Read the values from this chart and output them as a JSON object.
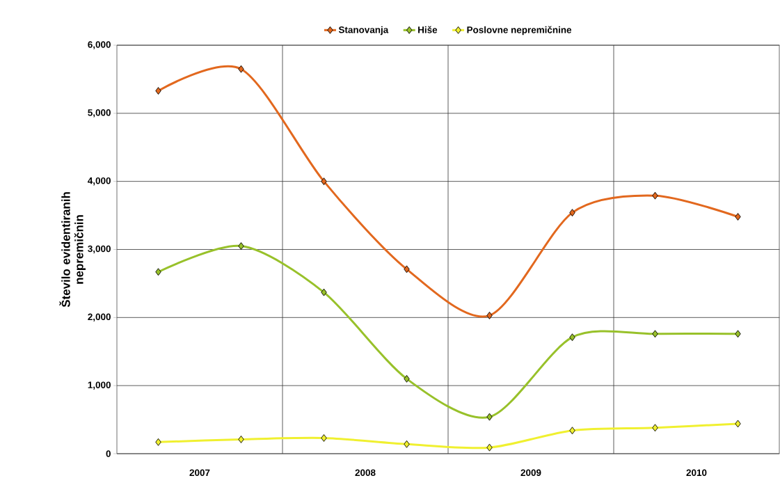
{
  "chart_data": {
    "type": "line",
    "ylabel": "Število evidentiranih nepremičnin",
    "x": [
      2007.25,
      2007.75,
      2008.25,
      2008.75,
      2009.25,
      2009.75,
      2010.25,
      2010.75
    ],
    "xlim": [
      2007,
      2011
    ],
    "xticks": [
      {
        "value": 2007.5,
        "label": "2007"
      },
      {
        "value": 2008,
        "label": null
      },
      {
        "value": 2008.5,
        "label": "2008"
      },
      {
        "value": 2009,
        "label": null
      },
      {
        "value": 2009.5,
        "label": "2009"
      },
      {
        "value": 2010,
        "label": null
      },
      {
        "value": 2010.5,
        "label": "2010"
      }
    ],
    "ylim": [
      0,
      6000
    ],
    "yticks": [
      {
        "value": 0,
        "label": "0"
      },
      {
        "value": 1000,
        "label": "1,000"
      },
      {
        "value": 2000,
        "label": "2,000"
      },
      {
        "value": 3000,
        "label": "3,000"
      },
      {
        "value": 4000,
        "label": "4,000"
      },
      {
        "value": 5000,
        "label": "5,000"
      },
      {
        "value": 6000,
        "label": "6,000"
      }
    ],
    "grid": true,
    "legend": "top",
    "marker": "diamond",
    "series": [
      {
        "name": "Stanovanja",
        "color": "#e2681e",
        "values": [
          5330,
          5650,
          4000,
          2710,
          2030,
          3540,
          3790,
          3480
        ]
      },
      {
        "name": "Hiše",
        "color": "#98c12a",
        "values": [
          2670,
          3050,
          2370,
          1100,
          540,
          1710,
          1760,
          1760
        ]
      },
      {
        "name": "Poslovne nepremičnine",
        "color": "#f0f030",
        "values": [
          170,
          210,
          230,
          140,
          90,
          340,
          380,
          440
        ]
      }
    ]
  }
}
